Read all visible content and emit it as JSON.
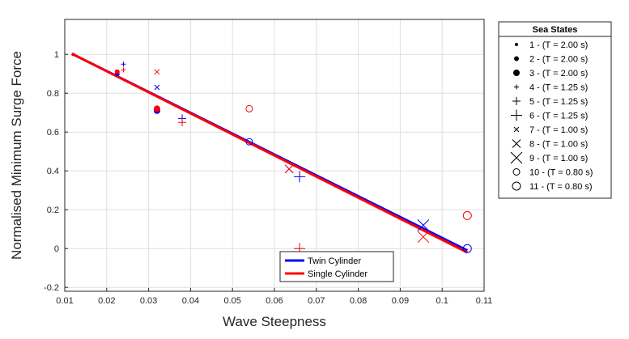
{
  "chart_data": {
    "type": "scatter",
    "title": "",
    "xlabel": "Wave Steepness",
    "ylabel": "Normalised Minimum Surge Force",
    "xlim": [
      0.01,
      0.11
    ],
    "ylim": [
      -0.22,
      1.18
    ],
    "xticks": [
      "0.01",
      "0.02",
      "0.03",
      "0.04",
      "0.05",
      "0.06",
      "0.07",
      "0.08",
      "0.09",
      "0.1",
      "0.11"
    ],
    "yticks": [
      "-0.2",
      "0",
      "0.2",
      "0.4",
      "0.6",
      "0.8",
      "1"
    ],
    "grid": true,
    "colors": {
      "twin": "#0000ff",
      "single": "#ff0000"
    },
    "fit_lines": [
      {
        "name": "Twin Cylinder",
        "color": "#0000ff",
        "x": [
          0.012,
          0.106
        ],
        "y": [
          1.0,
          -0.01
        ]
      },
      {
        "name": "Single Cylinder",
        "color": "#ff0000",
        "x": [
          0.012,
          0.106
        ],
        "y": [
          1.0,
          -0.02
        ]
      }
    ],
    "fit_legend_position": "bottom-center",
    "sea_states": {
      "title": "Sea States",
      "position": "outside-right",
      "entries": [
        {
          "label": "1 - (T = 2.00 s)",
          "marker": "dot",
          "size": "small"
        },
        {
          "label": "2 - (T = 2.00 s)",
          "marker": "dot",
          "size": "medium"
        },
        {
          "label": "3 - (T = 2.00 s)",
          "marker": "dot",
          "size": "large"
        },
        {
          "label": "4 - (T = 1.25 s)",
          "marker": "plus",
          "size": "small"
        },
        {
          "label": "5 - (T = 1.25 s)",
          "marker": "plus",
          "size": "medium"
        },
        {
          "label": "6 - (T = 1.25 s)",
          "marker": "plus",
          "size": "large"
        },
        {
          "label": "7 - (T = 1.00 s)",
          "marker": "cross",
          "size": "small"
        },
        {
          "label": "8 - (T = 1.00 s)",
          "marker": "cross",
          "size": "medium"
        },
        {
          "label": "9 - (T = 1.00 s)",
          "marker": "cross",
          "size": "large"
        },
        {
          "label": "10 - (T = 0.80 s)",
          "marker": "circle",
          "size": "small"
        },
        {
          "label": "11 - (T = 0.80 s)",
          "marker": "circle",
          "size": "large"
        }
      ]
    },
    "points": [
      {
        "series": "twin",
        "sea_state": 1,
        "x": 0.012,
        "y": 1.0
      },
      {
        "series": "single",
        "sea_state": 1,
        "x": 0.012,
        "y": 1.0
      },
      {
        "series": "twin",
        "sea_state": 2,
        "x": 0.0225,
        "y": 0.9
      },
      {
        "series": "single",
        "sea_state": 2,
        "x": 0.0225,
        "y": 0.91
      },
      {
        "series": "twin",
        "sea_state": 3,
        "x": 0.032,
        "y": 0.71
      },
      {
        "series": "single",
        "sea_state": 3,
        "x": 0.032,
        "y": 0.72
      },
      {
        "series": "twin",
        "sea_state": 4,
        "x": 0.024,
        "y": 0.95
      },
      {
        "series": "single",
        "sea_state": 4,
        "x": 0.024,
        "y": 0.92
      },
      {
        "series": "twin",
        "sea_state": 5,
        "x": 0.038,
        "y": 0.67
      },
      {
        "series": "single",
        "sea_state": 5,
        "x": 0.038,
        "y": 0.65
      },
      {
        "series": "twin",
        "sea_state": 6,
        "x": 0.066,
        "y": 0.37
      },
      {
        "series": "single",
        "sea_state": 6,
        "x": 0.066,
        "y": 0.0
      },
      {
        "series": "twin",
        "sea_state": 7,
        "x": 0.032,
        "y": 0.83
      },
      {
        "series": "single",
        "sea_state": 7,
        "x": 0.032,
        "y": 0.91
      },
      {
        "series": "twin",
        "sea_state": 8,
        "x": 0.0635,
        "y": 0.41
      },
      {
        "series": "single",
        "sea_state": 8,
        "x": 0.0635,
        "y": 0.41
      },
      {
        "series": "twin",
        "sea_state": 9,
        "x": 0.0955,
        "y": 0.12
      },
      {
        "series": "single",
        "sea_state": 9,
        "x": 0.0955,
        "y": 0.06
      },
      {
        "series": "twin",
        "sea_state": 10,
        "x": 0.054,
        "y": 0.55
      },
      {
        "series": "single",
        "sea_state": 10,
        "x": 0.054,
        "y": 0.72
      },
      {
        "series": "twin",
        "sea_state": 11,
        "x": 0.106,
        "y": 0.0
      },
      {
        "series": "single",
        "sea_state": 11,
        "x": 0.106,
        "y": 0.17
      }
    ]
  }
}
